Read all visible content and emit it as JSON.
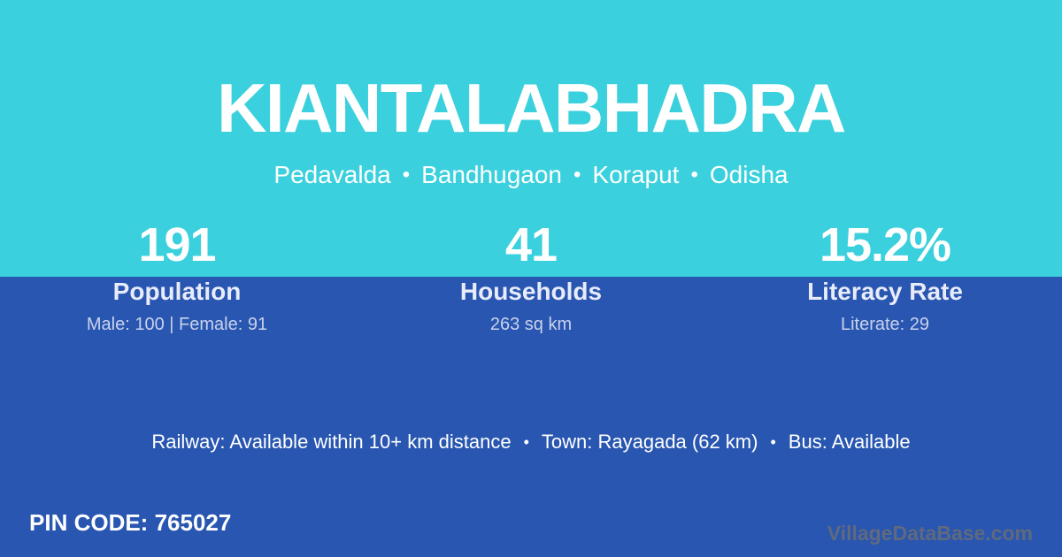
{
  "colors": {
    "top_background": "#3ad0dd",
    "bottom_background": "#2856b0",
    "title_text": "#ffffff",
    "stat_label_text": "#e8ecfa",
    "stat_detail_text": "#c9d2ec",
    "watermark_text": "#60697e"
  },
  "header": {
    "title": "KIANTALABHADRA",
    "location": {
      "village": "Pedavalda",
      "block": "Bandhugaon",
      "district": "Koraput",
      "state": "Odisha",
      "separator": "•"
    }
  },
  "stats": [
    {
      "value": "191",
      "label": "Population",
      "detail": "Male: 100 | Female: 91"
    },
    {
      "value": "41",
      "label": "Households",
      "detail": "263 sq km"
    },
    {
      "value": "15.2%",
      "label": "Literacy Rate",
      "detail": "Literate: 29"
    }
  ],
  "amenities": {
    "separator": "•",
    "items": [
      "Railway: Available within 10+ km distance",
      "Town: Rayagada (62 km)",
      "Bus: Available"
    ]
  },
  "footer": {
    "pin_code": "PIN CODE: 765027",
    "watermark": "VillageDataBase.com"
  }
}
